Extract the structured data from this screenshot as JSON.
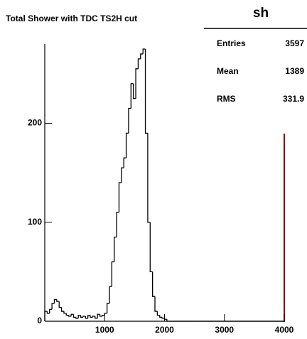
{
  "chart_data": {
    "type": "histogram",
    "title": "Total Shower with TDC TS2H cut",
    "stats": {
      "name": "sh",
      "rows": [
        [
          "Entries",
          "3597"
        ],
        [
          "Mean",
          "1389"
        ],
        [
          "RMS",
          "331.9"
        ]
      ]
    },
    "bins": [
      0,
      40,
      80,
      120,
      160,
      200,
      240,
      280,
      320,
      360,
      400,
      440,
      480,
      520,
      560,
      600,
      640,
      680,
      720,
      760,
      800,
      840,
      880,
      920,
      960,
      1000,
      1040,
      1080,
      1120,
      1160,
      1200,
      1240,
      1280,
      1320,
      1360,
      1400,
      1440,
      1480,
      1520,
      1560,
      1600,
      1640,
      1680,
      1720,
      1760,
      1800,
      1840,
      1880,
      1920,
      1960,
      2000,
      2040,
      2080,
      2120,
      2160,
      2200,
      2240,
      2280,
      2320,
      2360,
      2400,
      2440,
      2480,
      2520,
      2560,
      2600,
      2640,
      2680,
      2720,
      2760,
      2800,
      2840,
      2880,
      2920,
      2960,
      3000,
      3040,
      3080,
      3120,
      3160,
      3200,
      3240,
      3280,
      3320,
      3360,
      3400,
      3440,
      3480,
      3520,
      3560,
      3600,
      3640,
      3680,
      3720,
      3760,
      3800,
      3840,
      3880,
      3920,
      3960,
      4000
    ],
    "values": [
      10,
      8,
      12,
      18,
      22,
      20,
      14,
      10,
      8,
      6,
      5,
      7,
      4,
      3,
      6,
      4,
      5,
      3,
      6,
      4,
      5,
      3,
      7,
      5,
      6,
      8,
      18,
      35,
      60,
      85,
      110,
      140,
      155,
      165,
      190,
      215,
      240,
      225,
      255,
      265,
      270,
      275,
      190,
      100,
      50,
      25,
      10,
      6,
      4,
      3,
      2,
      0,
      0,
      0,
      0,
      0,
      0,
      0,
      0,
      0,
      0,
      0,
      0,
      0,
      0,
      0,
      0,
      0,
      0,
      0,
      0,
      0,
      0,
      0,
      0,
      0,
      0,
      0,
      0,
      0,
      0,
      0,
      0,
      0,
      0,
      0,
      0,
      0,
      0,
      0,
      0,
      0,
      0,
      0,
      0,
      0,
      0,
      0,
      0,
      0
    ],
    "color": "#000000",
    "xlim": [
      0,
      4000
    ],
    "xticks": [
      1000,
      2000,
      3000,
      4000
    ],
    "ylim": [
      0,
      280
    ],
    "yticks": [
      0,
      100,
      200
    ]
  }
}
